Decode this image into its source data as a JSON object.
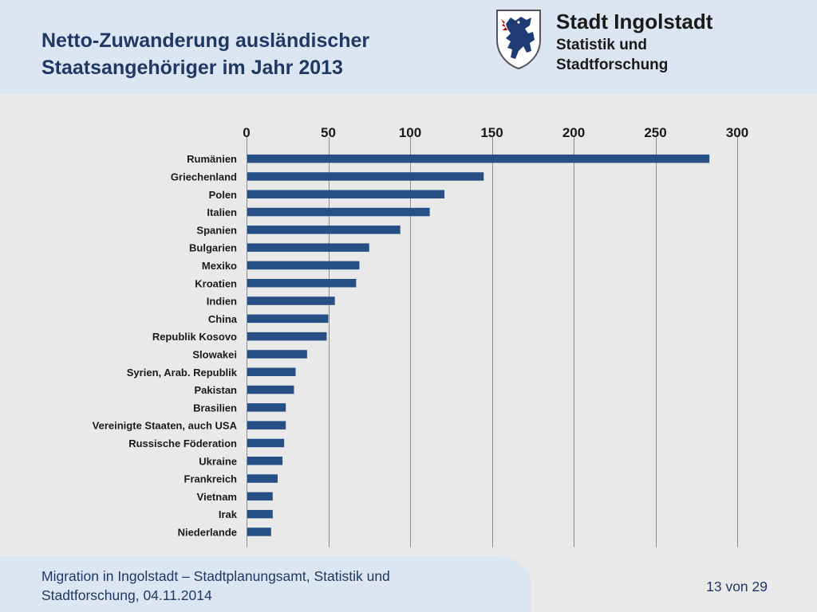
{
  "header": {
    "title_line1": "Netto-Zuwanderung ausländischer",
    "title_line2": "Staatsangehöriger im Jahr 2013",
    "brand_name": "Stadt Ingolstadt",
    "brand_sub_line1": "Statistik und",
    "brand_sub_line2": "Stadtforschung"
  },
  "colors": {
    "bar": "#254f85",
    "title": "#1f3864",
    "header_bg": "#dce6f2",
    "crest_red": "#c00000",
    "crest_blue": "#1f3b73"
  },
  "chart_data": {
    "type": "bar",
    "orientation": "horizontal",
    "title": "",
    "xlabel": "",
    "ylabel": "",
    "xlim": [
      0,
      300
    ],
    "ticks": [
      0,
      50,
      100,
      150,
      200,
      250,
      300
    ],
    "grid": true,
    "categories": [
      "Rumänien",
      "Griechenland",
      "Polen",
      "Italien",
      "Spanien",
      "Bulgarien",
      "Mexiko",
      "Kroatien",
      "Indien",
      "China",
      "Republik Kosovo",
      "Slowakei",
      "Syrien, Arab. Republik",
      "Pakistan",
      "Brasilien",
      "Vereinigte Staaten, auch USA",
      "Russische Föderation",
      "Ukraine",
      "Frankreich",
      "Vietnam",
      "Irak",
      "Niederlande"
    ],
    "values": [
      283,
      145,
      121,
      112,
      94,
      75,
      69,
      67,
      54,
      50,
      49,
      37,
      30,
      29,
      24,
      24,
      23,
      22,
      19,
      16,
      16,
      15
    ]
  },
  "footer": {
    "line1": "Migration in Ingolstadt – Stadtplanungsamt, Statistik und",
    "line2": "Stadtforschung, 04.11.2014",
    "page": "13 von 29"
  }
}
